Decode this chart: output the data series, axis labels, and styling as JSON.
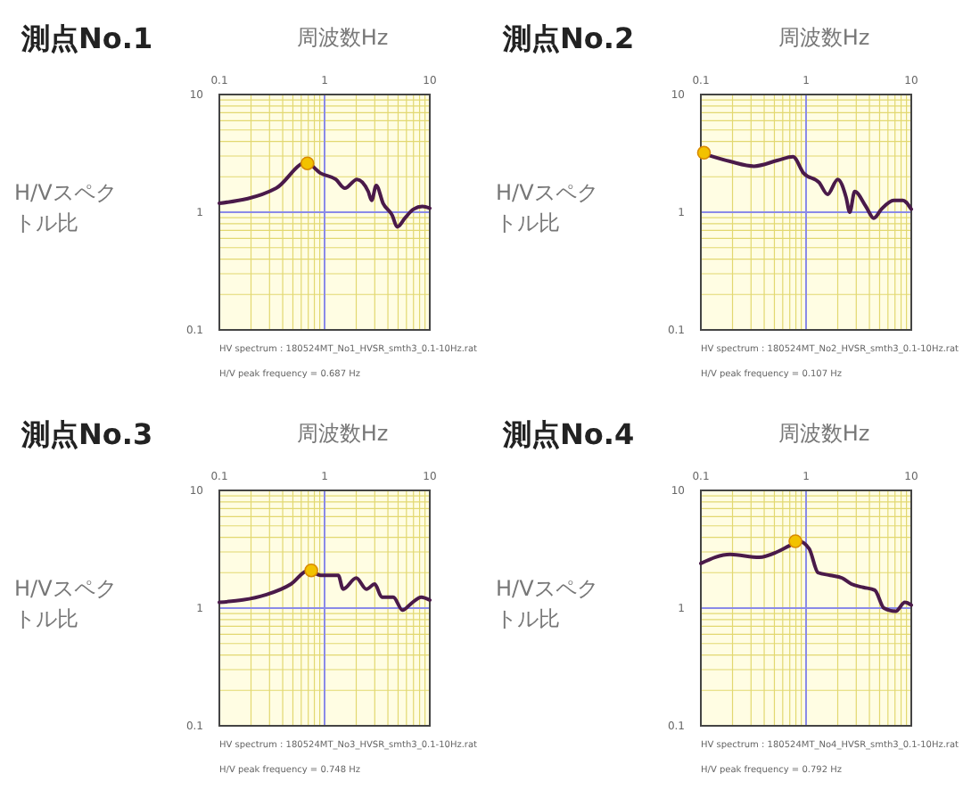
{
  "chart_data": [
    {
      "type": "line",
      "title": "測点No.1",
      "xlabel": "周波数Hz",
      "ylabel": "H/Vスペクトル比",
      "log": "xy",
      "grid": true,
      "xlim": [
        0.1,
        10
      ],
      "ylim": [
        0.1,
        10
      ],
      "xticks": [
        0.1,
        {
          "value": 0.2,
          "label": null
        },
        {
          "value": 0.3,
          "label": null
        },
        {
          "value": 0.4,
          "label": null
        },
        {
          "value": 0.5,
          "label": null
        },
        {
          "value": 0.6,
          "label": null
        },
        {
          "value": 0.7,
          "label": null
        },
        {
          "value": 0.8,
          "label": null
        },
        {
          "value": 0.9,
          "label": null
        },
        1,
        {
          "value": 2,
          "label": null
        },
        {
          "value": 3,
          "label": null
        },
        {
          "value": 4,
          "label": null
        },
        {
          "value": 5,
          "label": null
        },
        {
          "value": 6,
          "label": null
        },
        {
          "value": 7,
          "label": null
        },
        {
          "value": 8,
          "label": null
        },
        {
          "value": 9,
          "label": null
        },
        10
      ],
      "yticks": [
        0.1,
        {
          "value": 0.2,
          "label": null
        },
        {
          "value": 0.3,
          "label": null
        },
        {
          "value": 0.4,
          "label": null
        },
        {
          "value": 0.5,
          "label": null
        },
        {
          "value": 0.6,
          "label": null
        },
        {
          "value": 0.7,
          "label": null
        },
        {
          "value": 0.8,
          "label": null
        },
        {
          "value": 0.9,
          "label": null
        },
        1,
        {
          "value": 2,
          "label": null
        },
        {
          "value": 3,
          "label": null
        },
        {
          "value": 4,
          "label": null
        },
        {
          "value": 5,
          "label": null
        },
        {
          "value": 6,
          "label": null
        },
        {
          "value": 7,
          "label": null
        },
        {
          "value": 8,
          "label": null
        },
        {
          "value": 9,
          "label": null
        },
        10
      ],
      "series": [
        {
          "color": "#4a1a4a",
          "x": [
            0.1,
            0.347,
            0.667,
            0.92,
            1.28,
            1.56,
            2.03,
            2.6,
            2.8,
            3.1,
            3.6,
            4.4,
            4.9,
            5.8,
            7,
            8.5,
            10
          ],
          "values": [
            1.19,
            1.6,
            2.64,
            2.14,
            1.9,
            1.6,
            1.9,
            1.5,
            1.26,
            1.69,
            1.19,
            0.94,
            0.75,
            0.89,
            1.06,
            1.12,
            1.08
          ]
        },
        {
          "type": "scatter",
          "color": "#f2c200",
          "x": [
            0.687
          ],
          "values": [
            2.6
          ]
        }
      ],
      "annotations": [
        "HV spectrum : 180524MT_No1_HVSR_smth3_0.1-10Hz.rat",
        "H/V peak frequency = 0.687 Hz"
      ]
    },
    {
      "type": "line",
      "title": "測点No.2",
      "xlabel": "周波数Hz",
      "ylabel": "H/Vスペクトル比",
      "log": "xy",
      "grid": true,
      "xlim": [
        0.1,
        10
      ],
      "ylim": [
        0.1,
        10
      ],
      "xticks": [
        0.1,
        {
          "value": 0.2,
          "label": null
        },
        {
          "value": 0.3,
          "label": null
        },
        {
          "value": 0.4,
          "label": null
        },
        {
          "value": 0.5,
          "label": null
        },
        {
          "value": 0.6,
          "label": null
        },
        {
          "value": 0.7,
          "label": null
        },
        {
          "value": 0.8,
          "label": null
        },
        {
          "value": 0.9,
          "label": null
        },
        1,
        {
          "value": 2,
          "label": null
        },
        {
          "value": 3,
          "label": null
        },
        {
          "value": 4,
          "label": null
        },
        {
          "value": 5,
          "label": null
        },
        {
          "value": 6,
          "label": null
        },
        {
          "value": 7,
          "label": null
        },
        {
          "value": 8,
          "label": null
        },
        {
          "value": 9,
          "label": null
        },
        10
      ],
      "yticks": [
        0.1,
        {
          "value": 0.2,
          "label": null
        },
        {
          "value": 0.3,
          "label": null
        },
        {
          "value": 0.4,
          "label": null
        },
        {
          "value": 0.5,
          "label": null
        },
        {
          "value": 0.6,
          "label": null
        },
        {
          "value": 0.7,
          "label": null
        },
        {
          "value": 0.8,
          "label": null
        },
        {
          "value": 0.9,
          "label": null
        },
        1,
        {
          "value": 2,
          "label": null
        },
        {
          "value": 3,
          "label": null
        },
        {
          "value": 4,
          "label": null
        },
        {
          "value": 5,
          "label": null
        },
        {
          "value": 6,
          "label": null
        },
        {
          "value": 7,
          "label": null
        },
        {
          "value": 8,
          "label": null
        },
        {
          "value": 9,
          "label": null
        },
        10
      ],
      "series": [
        {
          "color": "#4a1a4a",
          "x": [
            0.1,
            0.19,
            0.32,
            0.54,
            0.75,
            0.95,
            1.33,
            1.6,
            2,
            2.4,
            2.6,
            2.9,
            3.7,
            4.4,
            5.2,
            6.8,
            8.3,
            10
          ],
          "values": [
            3.2,
            2.7,
            2.46,
            2.76,
            2.96,
            2.14,
            1.79,
            1.42,
            1.9,
            1.34,
            1,
            1.5,
            1.12,
            0.89,
            1.06,
            1.26,
            1.26,
            1.06
          ]
        },
        {
          "type": "scatter",
          "color": "#f2c200",
          "x": [
            0.107
          ],
          "values": [
            3.2
          ]
        }
      ],
      "annotations": [
        "HV spectrum : 180524MT_No2_HVSR_smth3_0.1-10Hz.rat",
        "H/V peak frequency = 0.107 Hz"
      ]
    },
    {
      "type": "line",
      "title": "測点No.3",
      "xlabel": "周波数Hz",
      "ylabel": "H/Vスペクトル比",
      "log": "xy",
      "grid": true,
      "xlim": [
        0.1,
        10
      ],
      "ylim": [
        0.1,
        10
      ],
      "xticks": [
        0.1,
        {
          "value": 0.2,
          "label": null
        },
        {
          "value": 0.3,
          "label": null
        },
        {
          "value": 0.4,
          "label": null
        },
        {
          "value": 0.5,
          "label": null
        },
        {
          "value": 0.6,
          "label": null
        },
        {
          "value": 0.7,
          "label": null
        },
        {
          "value": 0.8,
          "label": null
        },
        {
          "value": 0.9,
          "label": null
        },
        1,
        {
          "value": 2,
          "label": null
        },
        {
          "value": 3,
          "label": null
        },
        {
          "value": 4,
          "label": null
        },
        {
          "value": 5,
          "label": null
        },
        {
          "value": 6,
          "label": null
        },
        {
          "value": 7,
          "label": null
        },
        {
          "value": 8,
          "label": null
        },
        {
          "value": 9,
          "label": null
        },
        10
      ],
      "yticks": [
        0.1,
        {
          "value": 0.2,
          "label": null
        },
        {
          "value": 0.3,
          "label": null
        },
        {
          "value": 0.4,
          "label": null
        },
        {
          "value": 0.5,
          "label": null
        },
        {
          "value": 0.6,
          "label": null
        },
        {
          "value": 0.7,
          "label": null
        },
        {
          "value": 0.8,
          "label": null
        },
        {
          "value": 0.9,
          "label": null
        },
        1,
        {
          "value": 2,
          "label": null
        },
        {
          "value": 3,
          "label": null
        },
        {
          "value": 4,
          "label": null
        },
        {
          "value": 5,
          "label": null
        },
        {
          "value": 6,
          "label": null
        },
        {
          "value": 7,
          "label": null
        },
        {
          "value": 8,
          "label": null
        },
        {
          "value": 9,
          "label": null
        },
        10
      ],
      "series": [
        {
          "color": "#4a1a4a",
          "x": [
            0.1,
            0.28,
            0.48,
            0.7,
            0.92,
            1.35,
            1.5,
            2,
            2.5,
            3,
            3.5,
            4.5,
            5.5,
            6.7,
            8.3,
            10
          ],
          "values": [
            1.12,
            1.3,
            1.6,
            2.09,
            1.9,
            1.9,
            1.45,
            1.8,
            1.45,
            1.6,
            1.24,
            1.24,
            0.96,
            1.1,
            1.24,
            1.17
          ]
        },
        {
          "type": "scatter",
          "color": "#f2c200",
          "x": [
            0.748
          ],
          "values": [
            2.09
          ]
        }
      ],
      "annotations": [
        "HV spectrum : 180524MT_No3_HVSR_smth3_0.1-10Hz.rat",
        "H/V peak frequency = 0.748 Hz"
      ]
    },
    {
      "type": "line",
      "title": "測点No.4",
      "xlabel": "周波数Hz",
      "ylabel": "H/Vスペクトル比",
      "log": "xy",
      "grid": true,
      "xlim": [
        0.1,
        10
      ],
      "ylim": [
        0.1,
        10
      ],
      "xticks": [
        0.1,
        {
          "value": 0.2,
          "label": null
        },
        {
          "value": 0.3,
          "label": null
        },
        {
          "value": 0.4,
          "label": null
        },
        {
          "value": 0.5,
          "label": null
        },
        {
          "value": 0.6,
          "label": null
        },
        {
          "value": 0.7,
          "label": null
        },
        {
          "value": 0.8,
          "label": null
        },
        {
          "value": 0.9,
          "label": null
        },
        1,
        {
          "value": 2,
          "label": null
        },
        {
          "value": 3,
          "label": null
        },
        {
          "value": 4,
          "label": null
        },
        {
          "value": 5,
          "label": null
        },
        {
          "value": 6,
          "label": null
        },
        {
          "value": 7,
          "label": null
        },
        {
          "value": 8,
          "label": null
        },
        {
          "value": 9,
          "label": null
        },
        10
      ],
      "yticks": [
        0.1,
        {
          "value": 0.2,
          "label": null
        },
        {
          "value": 0.3,
          "label": null
        },
        {
          "value": 0.4,
          "label": null
        },
        {
          "value": 0.5,
          "label": null
        },
        {
          "value": 0.6,
          "label": null
        },
        {
          "value": 0.7,
          "label": null
        },
        {
          "value": 0.8,
          "label": null
        },
        {
          "value": 0.9,
          "label": null
        },
        1,
        {
          "value": 2,
          "label": null
        },
        {
          "value": 3,
          "label": null
        },
        {
          "value": 4,
          "label": null
        },
        {
          "value": 5,
          "label": null
        },
        {
          "value": 6,
          "label": null
        },
        {
          "value": 7,
          "label": null
        },
        {
          "value": 8,
          "label": null
        },
        {
          "value": 9,
          "label": null
        },
        10
      ],
      "series": [
        {
          "color": "#4a1a4a",
          "x": [
            0.1,
            0.19,
            0.36,
            0.53,
            0.7,
            0.85,
            1.07,
            1.3,
            1.7,
            2.2,
            2.7,
            3.5,
            4.5,
            5.5,
            7.1,
            8.7,
            10
          ],
          "values": [
            2.4,
            2.86,
            2.7,
            3,
            3.4,
            3.7,
            3.2,
            2,
            1.9,
            1.8,
            1.6,
            1.5,
            1.42,
            1,
            0.94,
            1.12,
            1.06
          ]
        },
        {
          "type": "scatter",
          "color": "#f2c200",
          "x": [
            0.792
          ],
          "values": [
            3.7
          ]
        }
      ],
      "annotations": [
        "HV spectrum : 180524MT_No4_HVSR_smth3_0.1-10Hz.rat",
        "H/V peak frequency = 0.792 Hz"
      ]
    }
  ]
}
